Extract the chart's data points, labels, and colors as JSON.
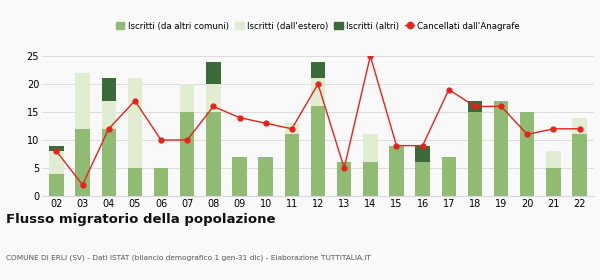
{
  "years": [
    "02",
    "03",
    "04",
    "05",
    "06",
    "07",
    "08",
    "09",
    "10",
    "11",
    "12",
    "13",
    "14",
    "15",
    "16",
    "17",
    "18",
    "19",
    "20",
    "21",
    "22"
  ],
  "iscritti_altri_comuni": [
    4,
    12,
    12,
    5,
    5,
    15,
    15,
    7,
    7,
    11,
    16,
    6,
    6,
    9,
    6,
    7,
    15,
    17,
    15,
    5,
    11
  ],
  "iscritti_estero": [
    4,
    10,
    5,
    16,
    0,
    5,
    5,
    0,
    0,
    2,
    5,
    0,
    5,
    0,
    0,
    0,
    0,
    0,
    0,
    3,
    3
  ],
  "iscritti_altri": [
    1,
    0,
    4,
    0,
    0,
    0,
    4,
    0,
    0,
    0,
    3,
    0,
    0,
    0,
    3,
    0,
    2,
    0,
    0,
    0,
    0
  ],
  "cancellati": [
    8,
    2,
    12,
    17,
    10,
    10,
    16,
    14,
    13,
    12,
    20,
    5,
    25,
    9,
    9,
    19,
    16,
    16,
    11,
    12,
    12
  ],
  "color_altri_comuni": "#8fbc72",
  "color_estero": "#e0edd0",
  "color_altri": "#3a6b38",
  "color_cancellati": "#e8221a",
  "ylim": [
    0,
    25
  ],
  "yticks": [
    0,
    5,
    10,
    15,
    20,
    25
  ],
  "title": "Flusso migratorio della popolazione",
  "subtitle": "COMUNE DI ERLI (SV) - Dati ISTAT (bilancio demografico 1 gen-31 dic) - Elaborazione TUTTITALIA.IT",
  "legend_labels": [
    "Iscritti (da altri comuni)",
    "Iscritti (dall'estero)",
    "Iscritti (altri)",
    "Cancellati dall'Anagrafe"
  ],
  "bg_color": "#f9f9f9",
  "grid_color": "#d8d8d8"
}
